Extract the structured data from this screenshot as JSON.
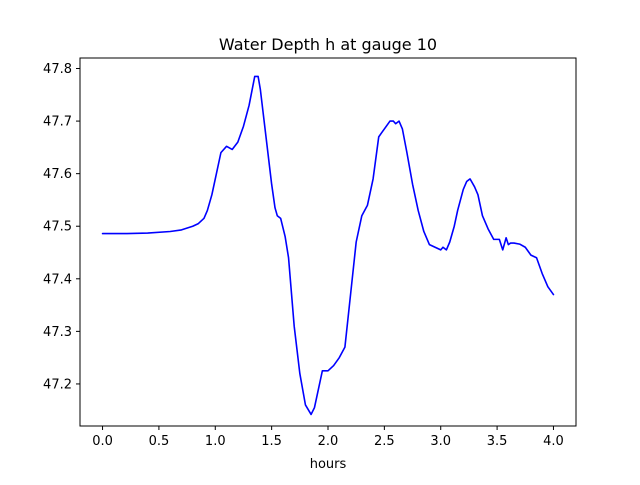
{
  "chart_data": {
    "type": "line",
    "title": "Water Depth h at gauge 10",
    "xlabel": "hours",
    "ylabel": "",
    "xlim": [
      -0.2,
      4.2
    ],
    "ylim": [
      47.12,
      47.82
    ],
    "xticks": [
      0.0,
      0.5,
      1.0,
      1.5,
      2.0,
      2.5,
      3.0,
      3.5,
      4.0
    ],
    "xtick_labels": [
      "0.0",
      "0.5",
      "1.0",
      "1.5",
      "2.0",
      "2.5",
      "3.0",
      "3.5",
      "4.0"
    ],
    "yticks": [
      47.2,
      47.3,
      47.4,
      47.5,
      47.6,
      47.7,
      47.8
    ],
    "ytick_labels": [
      "47.2",
      "47.3",
      "47.4",
      "47.5",
      "47.6",
      "47.7",
      "47.8"
    ],
    "grid": false,
    "series": [
      {
        "color": "#0000ff",
        "x": [
          0.0,
          0.2,
          0.4,
          0.6,
          0.7,
          0.8,
          0.85,
          0.9,
          0.93,
          0.97,
          1.0,
          1.05,
          1.1,
          1.15,
          1.2,
          1.25,
          1.3,
          1.35,
          1.38,
          1.4,
          1.45,
          1.5,
          1.53,
          1.55,
          1.58,
          1.62,
          1.65,
          1.7,
          1.75,
          1.8,
          1.85,
          1.88,
          1.9,
          1.95,
          2.0,
          2.05,
          2.1,
          2.15,
          2.2,
          2.25,
          2.3,
          2.35,
          2.4,
          2.45,
          2.5,
          2.55,
          2.58,
          2.6,
          2.63,
          2.66,
          2.7,
          2.75,
          2.8,
          2.85,
          2.9,
          2.95,
          3.0,
          3.02,
          3.05,
          3.08,
          3.12,
          3.15,
          3.2,
          3.23,
          3.26,
          3.3,
          3.33,
          3.37,
          3.42,
          3.47,
          3.52,
          3.55,
          3.58,
          3.6,
          3.62,
          3.65,
          3.7,
          3.75,
          3.8,
          3.85,
          3.9,
          3.95,
          4.0
        ],
        "values": [
          47.486,
          47.486,
          47.487,
          47.49,
          47.493,
          47.5,
          47.505,
          47.515,
          47.53,
          47.56,
          47.59,
          47.64,
          47.652,
          47.646,
          47.66,
          47.69,
          47.73,
          47.785,
          47.785,
          47.76,
          47.67,
          47.58,
          47.535,
          47.52,
          47.515,
          47.48,
          47.44,
          47.31,
          47.22,
          47.16,
          47.142,
          47.155,
          47.175,
          47.225,
          47.225,
          47.235,
          47.25,
          47.27,
          47.37,
          47.47,
          47.52,
          47.54,
          47.59,
          47.67,
          47.685,
          47.7,
          47.7,
          47.695,
          47.7,
          47.685,
          47.64,
          47.58,
          47.53,
          47.49,
          47.465,
          47.46,
          47.455,
          47.46,
          47.455,
          47.47,
          47.5,
          47.53,
          47.57,
          47.585,
          47.59,
          47.575,
          47.56,
          47.52,
          47.495,
          47.475,
          47.475,
          47.455,
          47.478,
          47.465,
          47.468,
          47.468,
          47.466,
          47.46,
          47.445,
          47.44,
          47.41,
          47.385,
          47.37
        ]
      }
    ]
  }
}
